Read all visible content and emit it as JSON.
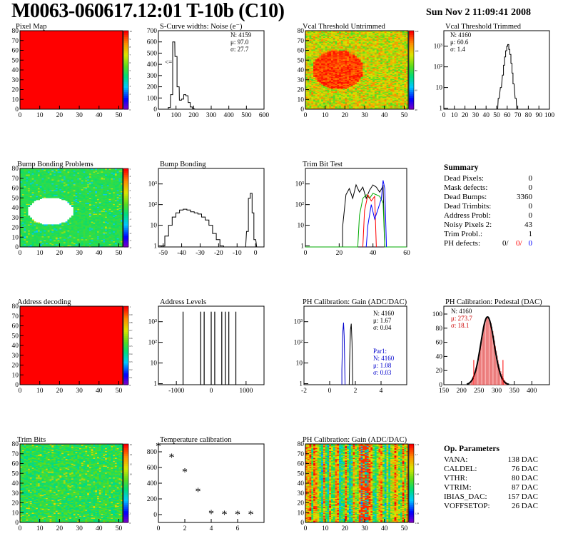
{
  "header": {
    "title": "M0063-060617.12:01 T-10b (C10)",
    "timestamp": "Sun Nov  2 11:09:41 2008"
  },
  "colors": {
    "uniform_red": "#ff0000",
    "histogram_line": "#000000",
    "pedestal_fit": "#ff0000",
    "par1_blue": "#0000cc",
    "trim_green": "#00aa00",
    "trim_blue": "#0000ff",
    "trim_red": "#ff0000"
  },
  "panels": {
    "pixel_map": {
      "title": "Pixel Map",
      "xticks": [
        "0",
        "10",
        "20",
        "30",
        "40",
        "50"
      ],
      "yticks": [
        "0",
        "10",
        "20",
        "30",
        "40",
        "50",
        "60",
        "70",
        "80"
      ],
      "zticks": [
        "0",
        "1",
        "2",
        "3",
        "4",
        "5",
        "6",
        "7",
        "8",
        "9",
        "10"
      ]
    },
    "scurve": {
      "title": "S-Curve widths: Noise (e⁻)",
      "stats": [
        "N: 4159",
        "μ: 97.0",
        "σ: 27.7"
      ],
      "xticks": [
        "0",
        "100",
        "200",
        "300",
        "400",
        "500",
        "600"
      ],
      "yticks": [
        "0",
        "100",
        "200",
        "300",
        "400",
        "500",
        "600",
        "700"
      ],
      "marker": "<="
    },
    "vcal_untrimmed": {
      "title": "Vcal Threshold Untrimmed",
      "xticks": [
        "0",
        "10",
        "20",
        "30",
        "40",
        "50"
      ],
      "yticks": [
        "0",
        "10",
        "20",
        "30",
        "40",
        "50",
        "60",
        "70",
        "80"
      ],
      "zticks": [
        "40",
        "60",
        "80",
        "100",
        "120"
      ]
    },
    "vcal_trimmed": {
      "title": "Vcal Threshold Trimmed",
      "stats": [
        "N: 4160",
        "μ: 60.6",
        "σ:  1.4"
      ],
      "xticks": [
        "0",
        "10",
        "20",
        "30",
        "40",
        "50",
        "60",
        "70",
        "80",
        "90",
        "100"
      ],
      "yticks": [
        "1",
        "10",
        "10²",
        "10³"
      ]
    },
    "bump_problems": {
      "title": "Bump Bonding Problems",
      "xticks": [
        "0",
        "10",
        "20",
        "30",
        "40",
        "50"
      ],
      "yticks": [
        "0",
        "10",
        "20",
        "30",
        "40",
        "50",
        "60",
        "70",
        "80"
      ],
      "zticks": [
        "-6",
        "-5",
        "-4",
        "-3",
        "-2",
        "-1",
        "0",
        "1",
        "2",
        "3",
        "4",
        "5"
      ]
    },
    "bump_bonding": {
      "title": "Bump Bonding",
      "xticks": [
        "-50",
        "-40",
        "-30",
        "-20",
        "-10",
        "0"
      ],
      "yticks": [
        "1",
        "10",
        "10²",
        "10³"
      ]
    },
    "trim_bit_test": {
      "title": "Trim Bit Test",
      "xticks": [
        "0",
        "20",
        "40",
        "60"
      ],
      "yticks": [
        "1",
        "10",
        "10²",
        "10³"
      ]
    },
    "address_decoding": {
      "title": "Address decoding",
      "xticks": [
        "0",
        "10",
        "20",
        "30",
        "40",
        "50"
      ],
      "yticks": [
        "0",
        "10",
        "20",
        "30",
        "40",
        "50",
        "60",
        "70",
        "80"
      ],
      "zticks": [
        "0",
        "0.1",
        "0.2",
        "0.3",
        "0.4",
        "0.5",
        "0.6",
        "0.7",
        "0.8",
        "0.9",
        "1"
      ]
    },
    "address_levels": {
      "title": "Address Levels",
      "xticks": [
        "-1000",
        "0",
        "1000"
      ],
      "yticks": [
        "1",
        "10",
        "10²",
        "10³"
      ]
    },
    "ph_gain": {
      "title": "PH Calibration: Gain (ADC/DAC)",
      "stats": [
        "N: 4160",
        "μ: 1.67",
        "σ: 0.04"
      ],
      "par1": [
        "Par1:",
        "N: 4160",
        "μ: 1.08",
        "σ: 0.03"
      ],
      "xticks": [
        "-2",
        "0",
        "2",
        "4"
      ],
      "yticks": [
        "1",
        "10",
        "10²",
        "10³"
      ]
    },
    "ph_pedestal": {
      "title": "PH Calibration: Pedestal (DAC)",
      "stats": [
        "N: 4160",
        "μ: 273.7",
        "σ: 18.1"
      ],
      "xticks": [
        "150",
        "200",
        "250",
        "300",
        "350",
        "400"
      ],
      "yticks": [
        "0",
        "20",
        "40",
        "60",
        "80",
        "100"
      ]
    },
    "trim_bits": {
      "title": "Trim Bits",
      "xticks": [
        "0",
        "10",
        "20",
        "30",
        "40",
        "50"
      ],
      "yticks": [
        "0",
        "10",
        "20",
        "30",
        "40",
        "50",
        "60",
        "70",
        "80"
      ],
      "zticks": [
        "0",
        "2",
        "4",
        "6",
        "8",
        "10",
        "12",
        "14",
        "16"
      ]
    },
    "temperature": {
      "title": "Temperature calibration",
      "xticks": [
        "0",
        "2",
        "4",
        "6"
      ],
      "yticks": [
        "0",
        "200",
        "400",
        "600",
        "800"
      ]
    },
    "ph_gain_map": {
      "title": "PH Calibration: Gain (ADC/DAC)",
      "xticks": [
        "0",
        "10",
        "20",
        "30",
        "40",
        "50"
      ],
      "yticks": [
        "0",
        "10",
        "20",
        "30",
        "40",
        "50",
        "60",
        "70",
        "80"
      ],
      "zticks": [
        "1.56",
        "1.58",
        "1.6",
        "1.62",
        "1.64",
        "1.66",
        "1.68",
        "1.7",
        "1.72"
      ]
    }
  },
  "summary": {
    "title": "Summary",
    "rows": [
      {
        "label": "Dead Pixels:",
        "value": "0"
      },
      {
        "label": "Mask defects:",
        "value": "0"
      },
      {
        "label": "Dead Bumps:",
        "value": "3360"
      },
      {
        "label": "Dead Trimbits:",
        "value": "0"
      },
      {
        "label": "Address Probl:",
        "value": "0"
      },
      {
        "label": "Noisy Pixels 2:",
        "value": "43"
      },
      {
        "label": "Trim Probl.:",
        "value": "1"
      }
    ],
    "ph_defects": {
      "label": "PH defects:",
      "v1": "0/",
      "v2": "0/",
      "v3": "0"
    }
  },
  "op_params": {
    "title": "Op. Parameters",
    "rows": [
      {
        "label": "VANA:",
        "value": "138 DAC"
      },
      {
        "label": "CALDEL:",
        "value": "76 DAC"
      },
      {
        "label": "VTHR:",
        "value": "80 DAC"
      },
      {
        "label": "VTRIM:",
        "value": "87 DAC"
      },
      {
        "label": "IBIAS_DAC:",
        "value": "157 DAC"
      },
      {
        "label": "VOFFSETOP:",
        "value": "26 DAC"
      }
    ]
  },
  "chart_data": [
    {
      "type": "heatmap",
      "title": "Pixel Map",
      "xlim": [
        0,
        52
      ],
      "ylim": [
        0,
        80
      ],
      "zlim": [
        0,
        10
      ],
      "uniform_value": 10
    },
    {
      "type": "bar",
      "title": "S-Curve widths: Noise (e⁻)",
      "x": [
        50,
        62,
        75,
        87,
        100,
        112,
        125,
        137,
        150,
        162,
        175,
        187,
        200
      ],
      "values": [
        0,
        15,
        130,
        600,
        470,
        200,
        80,
        90,
        130,
        120,
        60,
        20,
        3
      ],
      "xlim": [
        0,
        600
      ],
      "ylim": [
        0,
        700
      ]
    },
    {
      "type": "heatmap",
      "title": "Vcal Threshold Untrimmed",
      "xlim": [
        0,
        52
      ],
      "ylim": [
        0,
        80
      ],
      "zlim": [
        40,
        120
      ]
    },
    {
      "type": "bar",
      "title": "Vcal Threshold Trimmed",
      "x": [
        52,
        54,
        56,
        57,
        58,
        59,
        60,
        61,
        62,
        63,
        64,
        65,
        66,
        68
      ],
      "values": [
        3,
        10,
        40,
        120,
        300,
        600,
        1000,
        1200,
        700,
        400,
        150,
        50,
        15,
        3
      ],
      "xlim": [
        0,
        100
      ],
      "ylog": true
    },
    {
      "type": "heatmap",
      "title": "Bump Bonding Problems",
      "xlim": [
        0,
        52
      ],
      "ylim": [
        0,
        80
      ],
      "zlim": [
        -6,
        5
      ]
    },
    {
      "type": "bar",
      "title": "Bump Bonding",
      "x": [
        -48,
        -46,
        -44,
        -42,
        -40,
        -38,
        -36,
        -34,
        -32,
        -30,
        -28,
        -26,
        -24,
        -22,
        -20,
        -18,
        -16,
        -2,
        -1,
        0,
        1,
        2
      ],
      "values": [
        1,
        3,
        10,
        25,
        40,
        55,
        60,
        55,
        45,
        40,
        35,
        25,
        18,
        10,
        4,
        2,
        1,
        5,
        200,
        350,
        40,
        2
      ],
      "xlim": [
        -50,
        5
      ],
      "ylog": true
    },
    {
      "type": "line",
      "title": "Trim Bit Test",
      "xlim": [
        0,
        60
      ],
      "ylog": true,
      "series": [
        {
          "values": [
            1,
            800,
            900,
            1000,
            700
          ]
        },
        {
          "values": [
            1,
            300,
            500,
            200
          ]
        },
        {
          "values": [
            1,
            100,
            300
          ]
        },
        {
          "values": [
            1,
            1500
          ]
        }
      ]
    },
    {
      "type": "heatmap",
      "title": "Address decoding",
      "xlim": [
        0,
        52
      ],
      "ylim": [
        0,
        80
      ],
      "zlim": [
        0,
        1
      ],
      "uniform_value": 1
    },
    {
      "type": "bar",
      "title": "Address Levels",
      "x": [
        -800,
        -300,
        -200,
        0,
        100,
        300,
        400,
        500,
        700
      ],
      "values": [
        700,
        700,
        700,
        700,
        700,
        700,
        700,
        700,
        700
      ],
      "xlim": [
        -1500,
        1500
      ],
      "ylog": true
    },
    {
      "type": "bar",
      "title": "PH Calibration: Gain (ADC/DAC)",
      "series": [
        {
          "name": "Par1",
          "x": [
            0.95,
            1.0,
            1.05,
            1.1,
            1.15,
            1.2
          ],
          "values": [
            3,
            100,
            800,
            500,
            50,
            2
          ]
        },
        {
          "x": [
            1.55,
            1.6,
            1.65,
            1.7,
            1.75,
            1.8
          ],
          "values": [
            3,
            200,
            700,
            400,
            40,
            2
          ]
        }
      ],
      "xlim": [
        -2,
        6
      ],
      "ylog": true
    },
    {
      "type": "bar",
      "title": "PH Calibration: Pedestal (DAC)",
      "x": [
        230,
        240,
        250,
        260,
        270,
        280,
        290,
        300,
        310,
        320
      ],
      "values": [
        2,
        10,
        30,
        60,
        90,
        95,
        75,
        40,
        12,
        3
      ],
      "xlim": [
        150,
        450
      ],
      "ylim": [
        0,
        100
      ]
    },
    {
      "type": "heatmap",
      "title": "Trim Bits",
      "xlim": [
        0,
        52
      ],
      "ylim": [
        0,
        80
      ],
      "zlim": [
        0,
        16
      ]
    },
    {
      "type": "scatter",
      "title": "Temperature calibration",
      "x": [
        0,
        1,
        2,
        3,
        4,
        5,
        6,
        7
      ],
      "values": [
        860,
        720,
        530,
        280,
        0,
        -10,
        -10,
        -10
      ],
      "xlim": [
        0,
        8
      ],
      "ylim": [
        -100,
        900
      ]
    },
    {
      "type": "heatmap",
      "title": "PH Calibration: Gain (ADC/DAC)",
      "xlim": [
        0,
        52
      ],
      "ylim": [
        0,
        80
      ],
      "zlim": [
        1.56,
        1.72
      ]
    }
  ]
}
